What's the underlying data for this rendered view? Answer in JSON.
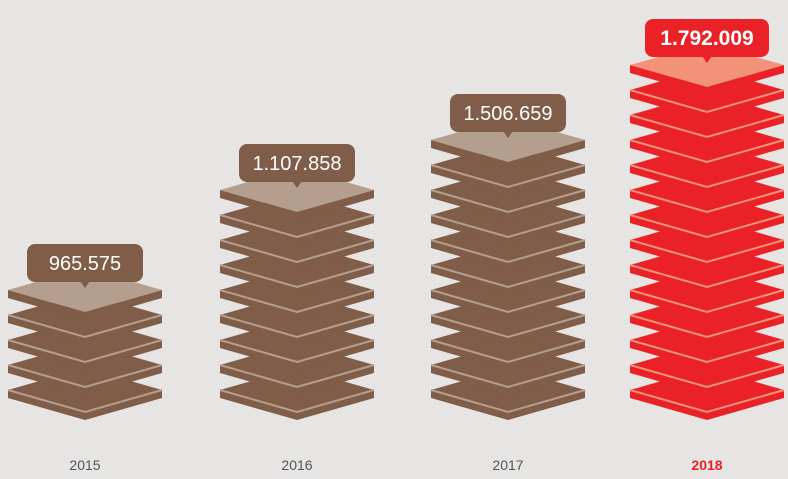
{
  "chart_data": {
    "type": "bar",
    "title": "",
    "xlabel": "",
    "ylabel": "",
    "categories": [
      "2015",
      "2016",
      "2017",
      "2018"
    ],
    "value_labels": [
      "965.575",
      "1.107.858",
      "1.506.659",
      "1.792.009"
    ],
    "values": [
      965575,
      1107858,
      1506659,
      1792009
    ],
    "stack_layers": [
      5,
      9,
      11,
      14
    ],
    "highlight_index": 3
  },
  "colors": {
    "background": "#e6e5e4",
    "slab_side": "#7f5d49",
    "slab_top": "#b49e8d",
    "callout": "#7f5d49",
    "callout_text": "#ffffff",
    "highlight_side": "#ea2227",
    "highlight_top": "#f29379",
    "highlight_callout": "#ea2227",
    "highlight_text": "#ffffff",
    "year_text": "#555555",
    "highlight_year_text": "#ea2227"
  }
}
